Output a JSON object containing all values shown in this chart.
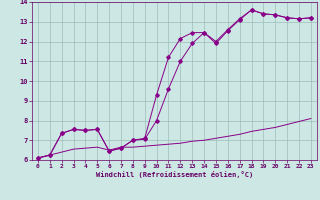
{
  "xlabel": "Windchill (Refroidissement éolien,°C)",
  "bg_color": "#cde8e4",
  "grid_color": "#9dbdb9",
  "line_color": "#880088",
  "xlim": [
    -0.5,
    23.5
  ],
  "ylim": [
    6,
    14
  ],
  "xticks": [
    0,
    1,
    2,
    3,
    4,
    5,
    6,
    7,
    8,
    9,
    10,
    11,
    12,
    13,
    14,
    15,
    16,
    17,
    18,
    19,
    20,
    21,
    22,
    23
  ],
  "yticks": [
    6,
    7,
    8,
    9,
    10,
    11,
    12,
    13,
    14
  ],
  "line1_x": [
    0,
    1,
    2,
    3,
    4,
    5,
    6,
    7,
    8,
    9,
    10,
    11,
    12,
    13,
    14,
    15,
    16,
    17,
    18,
    19,
    20,
    21,
    22,
    23
  ],
  "line1_y": [
    6.1,
    6.25,
    7.35,
    7.55,
    7.5,
    7.55,
    6.45,
    6.6,
    7.0,
    7.05,
    8.0,
    9.6,
    11.0,
    11.9,
    12.45,
    11.9,
    12.55,
    13.1,
    13.6,
    13.4,
    13.35,
    13.2,
    13.15,
    13.2
  ],
  "line2_x": [
    0,
    1,
    2,
    3,
    4,
    5,
    6,
    7,
    8,
    9,
    10,
    11,
    12,
    13,
    14,
    15,
    16,
    17,
    18,
    19,
    20,
    21,
    22,
    23
  ],
  "line2_y": [
    6.1,
    6.25,
    7.35,
    7.55,
    7.5,
    7.55,
    6.45,
    6.6,
    7.0,
    7.1,
    9.3,
    11.2,
    12.15,
    12.45,
    12.45,
    12.0,
    12.6,
    13.15,
    13.6,
    13.4,
    13.35,
    13.2,
    13.15,
    13.2
  ],
  "line3_x": [
    0,
    1,
    2,
    3,
    4,
    5,
    6,
    7,
    8,
    9,
    10,
    11,
    12,
    13,
    14,
    15,
    16,
    17,
    18,
    19,
    20,
    21,
    22,
    23
  ],
  "line3_y": [
    6.1,
    6.25,
    6.4,
    6.55,
    6.6,
    6.65,
    6.5,
    6.65,
    6.65,
    6.7,
    6.75,
    6.8,
    6.85,
    6.95,
    7.0,
    7.1,
    7.2,
    7.3,
    7.45,
    7.55,
    7.65,
    7.8,
    7.95,
    8.1
  ]
}
